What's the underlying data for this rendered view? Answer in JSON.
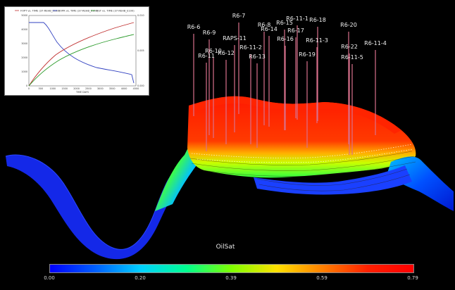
{
  "colors": {
    "background": "#000000",
    "well_stick": "#d8708c",
    "fopt": "#c03030",
    "fopr": "#3040c0",
    "fgt": "#2a9a2a"
  },
  "plot_panel": {
    "legend": [
      "FOPT vs. TIME (37-REHB_E100)",
      "FOPR vs. TIME (37-REHB_E100)",
      "FGT vs. TIME (37-REHB_E100)"
    ],
    "x_label": "TIME  DAYS",
    "x_ticks": [
      "0",
      "500",
      "1000",
      "1500",
      "2000",
      "2500",
      "3000",
      "3500",
      "4000",
      "4500"
    ],
    "y_left_ticks": [
      "0",
      "1000",
      "2000",
      "3000",
      "4000",
      "5000"
    ],
    "y_right_ticks": [
      "0.000",
      "0.005",
      "0.010"
    ]
  },
  "wells": [
    {
      "name": "R6-6"
    },
    {
      "name": "R6-9"
    },
    {
      "name": "R6-10"
    },
    {
      "name": "R6-11"
    },
    {
      "name": "R6-12"
    },
    {
      "name": "RAPS-11"
    },
    {
      "name": "R6-7"
    },
    {
      "name": "R6-11-2"
    },
    {
      "name": "R6-13"
    },
    {
      "name": "R6-8"
    },
    {
      "name": "R6-14"
    },
    {
      "name": "R6-15"
    },
    {
      "name": "R6-16"
    },
    {
      "name": "R6-11-1"
    },
    {
      "name": "R6-17"
    },
    {
      "name": "R6-18"
    },
    {
      "name": "R6-11-3"
    },
    {
      "name": "R6-19"
    },
    {
      "name": "R6-20"
    },
    {
      "name": "R6-22"
    },
    {
      "name": "R6-11-5"
    },
    {
      "name": "R6-11-4"
    }
  ],
  "property_label": "OilSat",
  "colorbar": {
    "ticks": [
      "0.00",
      "0.20",
      "0.39",
      "0.59",
      "0.79"
    ],
    "stops": [
      "#0000ff",
      "#0060ff",
      "#00d0ff",
      "#00ff90",
      "#80ff00",
      "#ffe000",
      "#ff8000",
      "#ff2000",
      "#ff0000"
    ]
  }
}
